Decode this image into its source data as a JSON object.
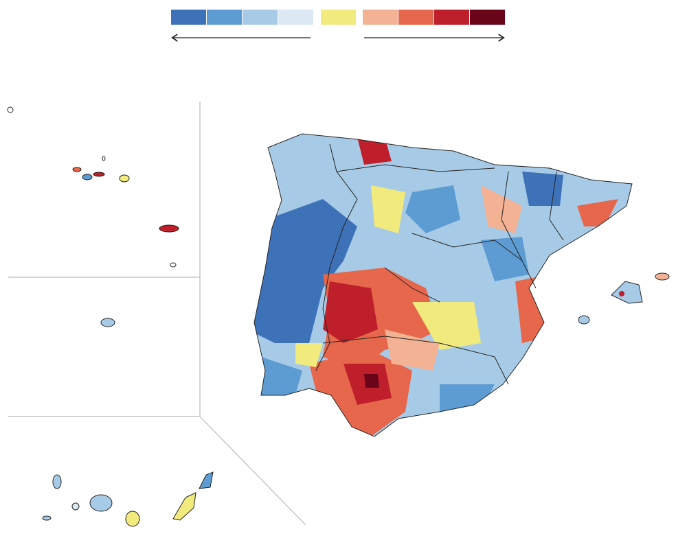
{
  "legend": {
    "colors": [
      "#3e72b8",
      "#5d9cd3",
      "#a7cbe7",
      "#dde9f2",
      "#f1ea7c",
      "#f3b294",
      "#e6674b",
      "#be1f2b",
      "#6a0419"
    ]
  }
}
